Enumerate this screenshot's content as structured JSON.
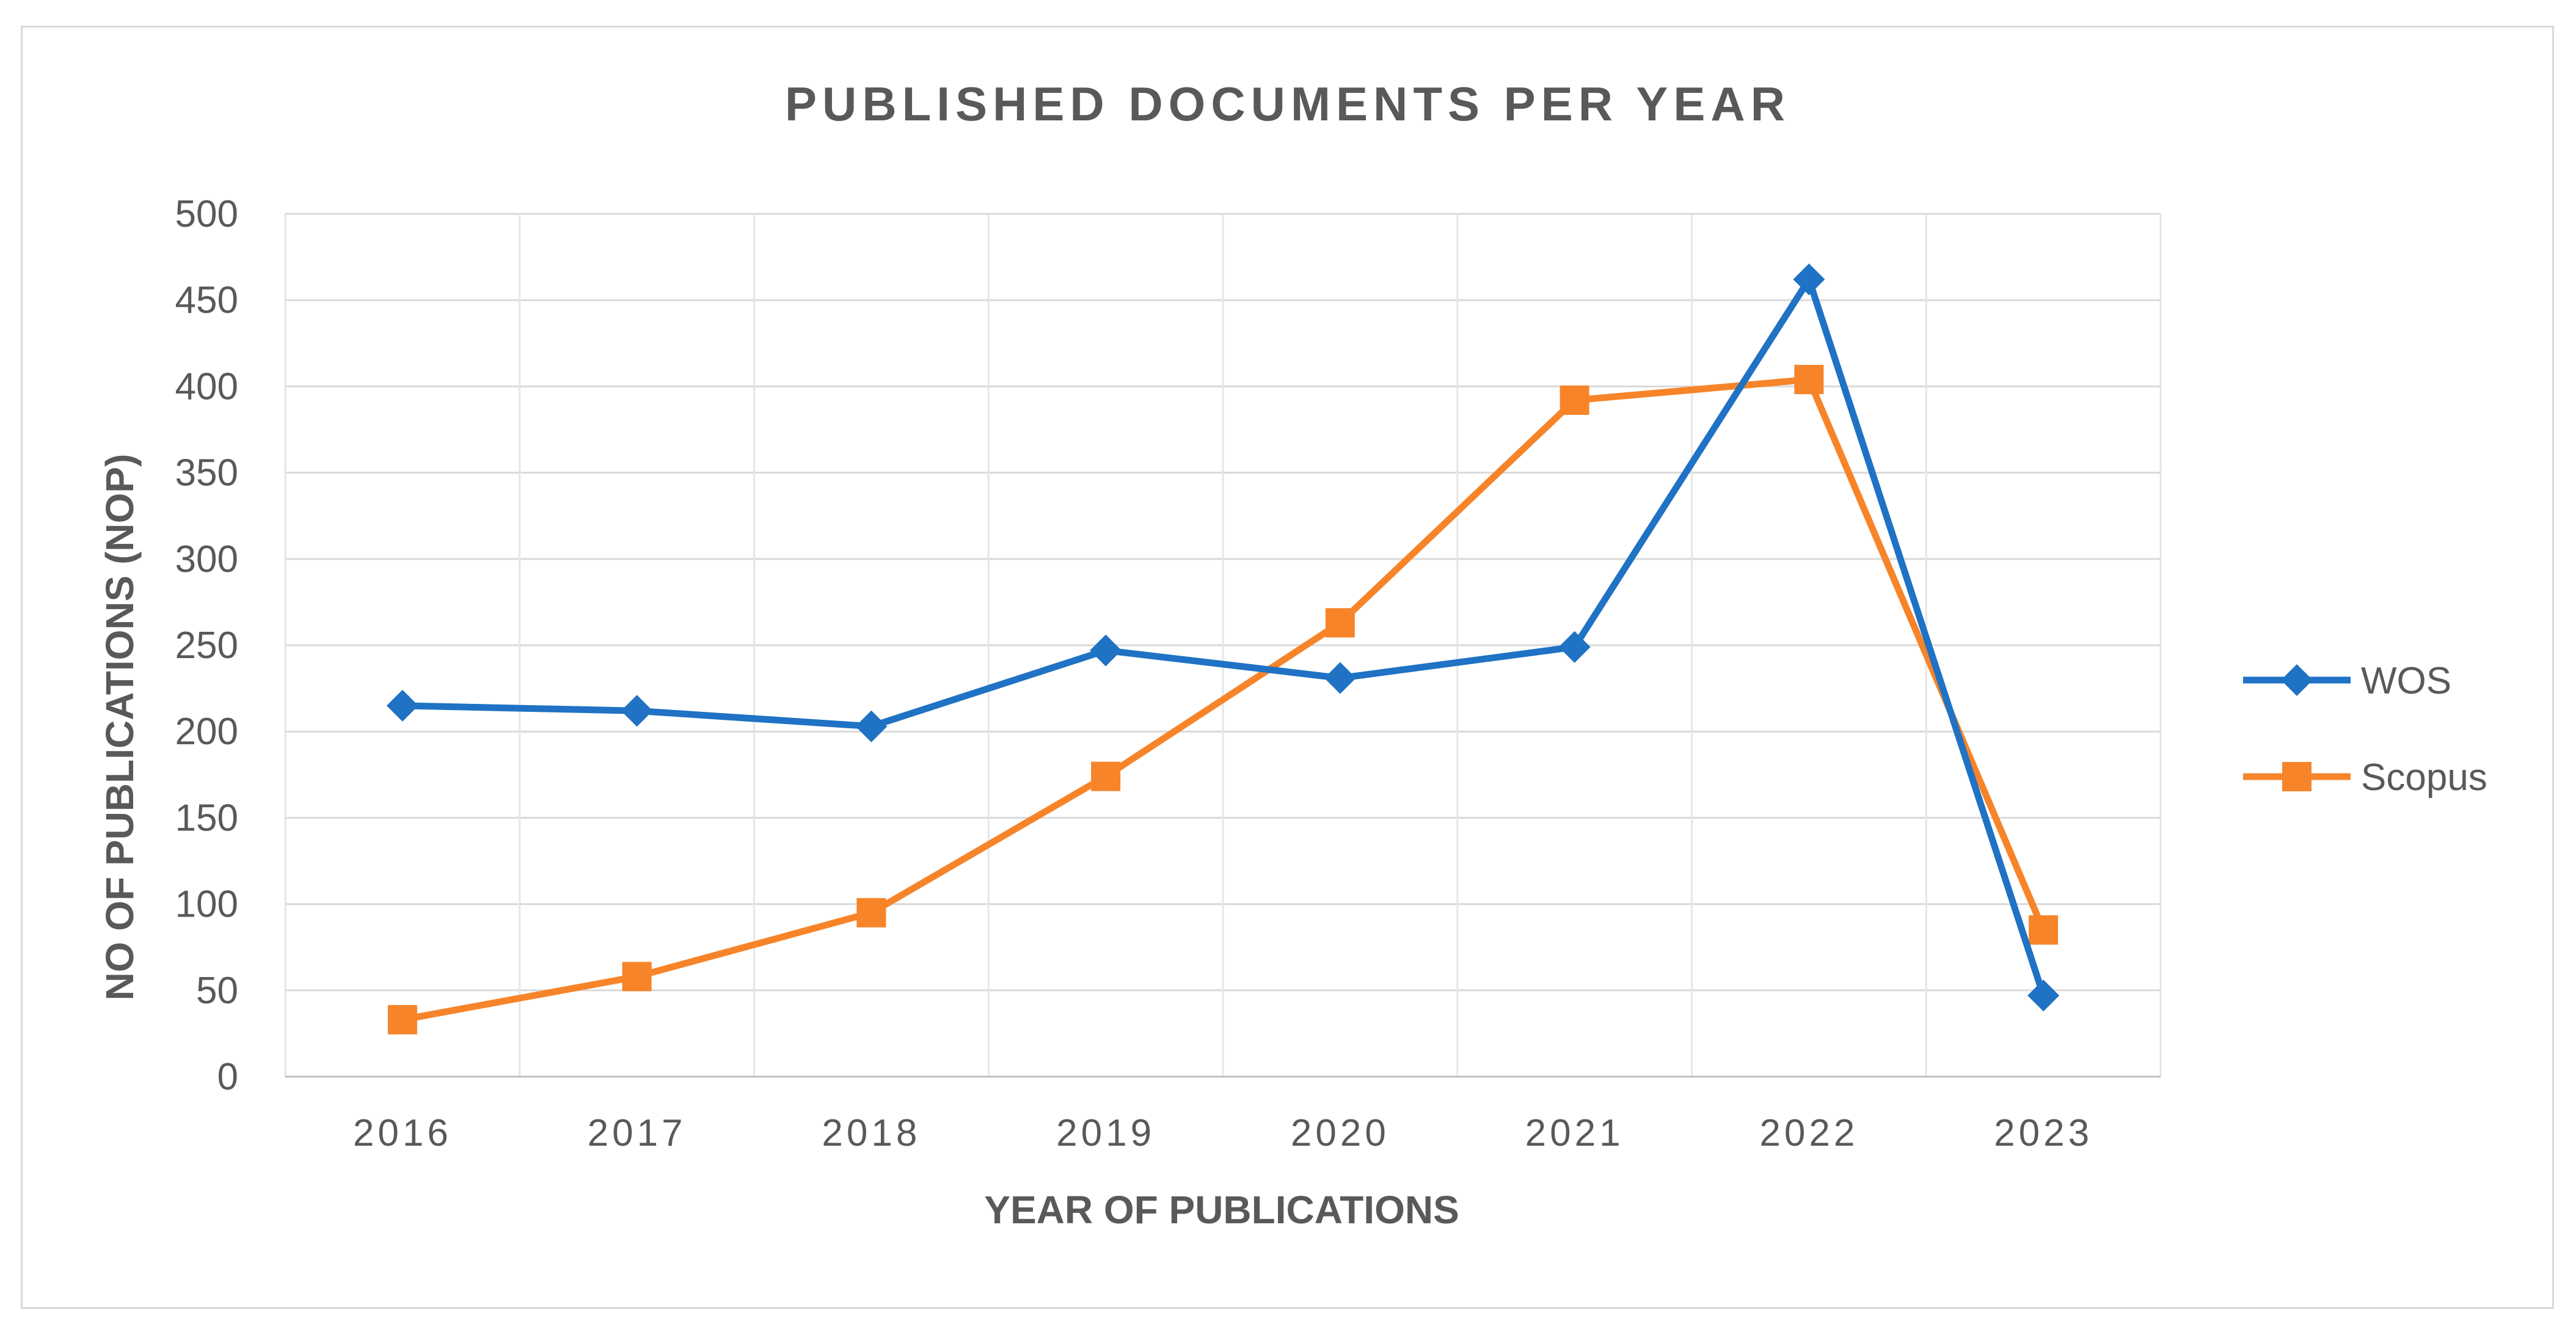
{
  "chart_data": {
    "type": "line",
    "title": "PUBLISHED DOCUMENTS PER YEAR",
    "xlabel": "YEAR OF PUBLICATIONS",
    "ylabel": "NO OF PUBLICATIONS (NOP)",
    "categories": [
      "2016",
      "2017",
      "2018",
      "2019",
      "2020",
      "2021",
      "2022",
      "2023"
    ],
    "ylim": [
      0,
      500
    ],
    "yticks": [
      "0",
      "50",
      "100",
      "150",
      "200",
      "250",
      "300",
      "350",
      "400",
      "450",
      "500"
    ],
    "grid": true,
    "legend_position": "right",
    "series": [
      {
        "name": "WOS",
        "color": "#1f72c4",
        "marker": "diamond",
        "values": [
          215,
          212,
          203,
          247,
          231,
          249,
          462,
          47
        ]
      },
      {
        "name": "Scopus",
        "color": "#f78429",
        "marker": "square",
        "values": [
          33,
          58,
          95,
          174,
          263,
          392,
          404,
          85
        ]
      }
    ]
  }
}
